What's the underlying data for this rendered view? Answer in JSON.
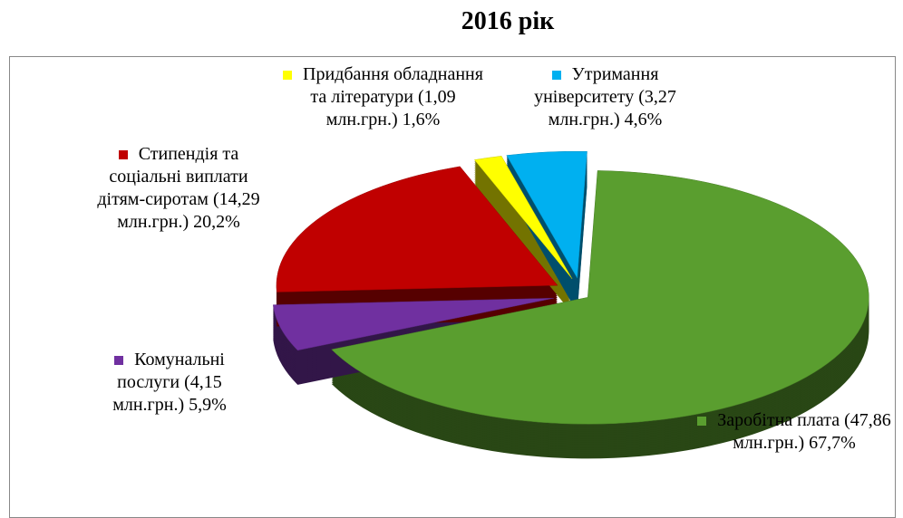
{
  "chart_data": {
    "type": "pie",
    "title": "2016 рік",
    "categories": [
      "Заробітна плата",
      "Комунальні послуги",
      "Стипендія та соціальні виплати дітям-сиротам",
      "Придбання обладнання та літератури",
      "Утримання університету"
    ],
    "values": [
      67.7,
      5.9,
      20.2,
      1.6,
      4.6
    ],
    "value_labels": [
      "67,7%",
      "5,9%",
      "20,2%",
      "1,6%",
      "4,6%"
    ],
    "amounts": [
      47.86,
      4.15,
      14.29,
      1.09,
      3.27
    ],
    "amount_labels": [
      "(47,86 млн.грн.)",
      "(4,15 млн.грн.)",
      "(14,29 млн.грн.)",
      "(1,09 млн.грн.)",
      "(3,27 млн.грн.)"
    ],
    "colors": [
      "#5a9e2f",
      "#7030a0",
      "#c00000",
      "#ffff00",
      "#00b0f0"
    ]
  }
}
